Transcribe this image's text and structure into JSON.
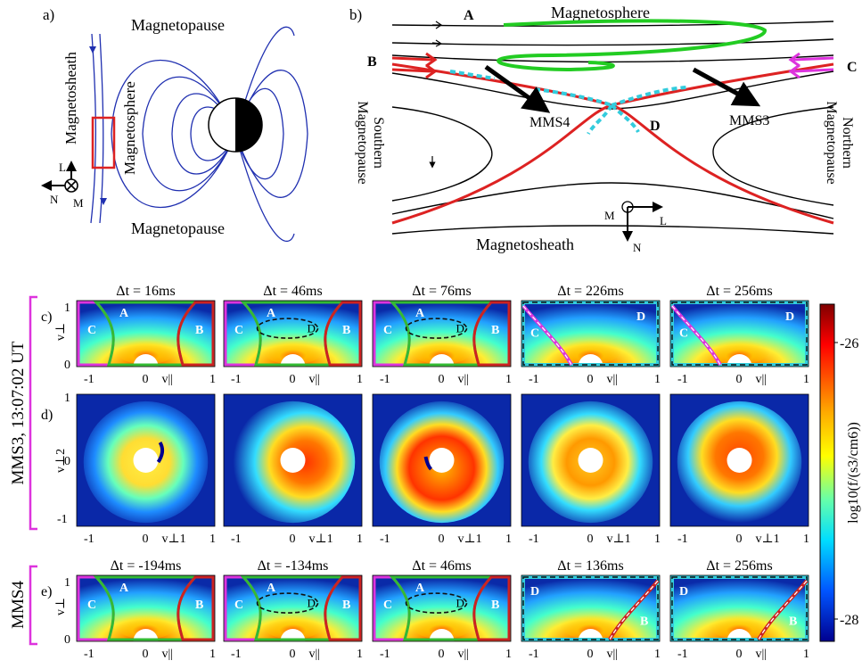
{
  "panel_a": {
    "label": "a)",
    "magnetopause_top": "Magnetopause",
    "magnetopause_bottom": "Magnetopause",
    "magnetosheath": "Magnetosheath",
    "magnetosphere": "Magnetosphere",
    "axis_l": "L",
    "axis_n": "N",
    "axis_m": "M"
  },
  "panel_b": {
    "label": "b)",
    "magnetosphere": "Magnetosphere",
    "magnetosheath": "Magnetosheath",
    "southern_line1": "Southern",
    "southern_line2": "Magnetopause",
    "northern_line1": "Northern",
    "northern_line2": "Magnetopause",
    "label_a": "A",
    "label_b": "B",
    "label_c": "C",
    "label_d": "D",
    "mms4": "MMS4",
    "mms3": "MMS3",
    "axis_m": "M",
    "axis_l": "L",
    "axis_n": "N"
  },
  "rows": {
    "mms3_label": "MMS3, 13:07:02 UT",
    "mms4_label": "MMS4",
    "row_c_label": "c)",
    "row_d_label": "d)",
    "row_e_label": "e)",
    "row_c_titles": [
      "Δt = 16ms",
      "Δt = 46ms",
      "Δt = 76ms",
      "Δt = 226ms",
      "Δt = 256ms"
    ],
    "row_e_titles": [
      "Δt = -194ms",
      "Δt = -134ms",
      "Δt = 46ms",
      "Δt = 136ms",
      "Δt = 256ms"
    ],
    "vperp": "v⊥",
    "vperp2": "v⊥2",
    "vpar": "v||",
    "vperp1": "v⊥1",
    "tick_m1": "-1",
    "tick_0": "0",
    "tick_1": "1"
  },
  "colorbar": {
    "label": "log10(f/(s3/cm6))",
    "tick_top": "-26",
    "tick_bottom": "-28",
    "colors": [
      "#7f0000",
      "#ff0000",
      "#ffff00",
      "#00ffff",
      "#0000ff",
      "#00008f"
    ]
  },
  "region_colors": {
    "A": "#33bb33",
    "B": "#cc2222",
    "C": "#dd33dd",
    "D": "#33ccdd"
  }
}
